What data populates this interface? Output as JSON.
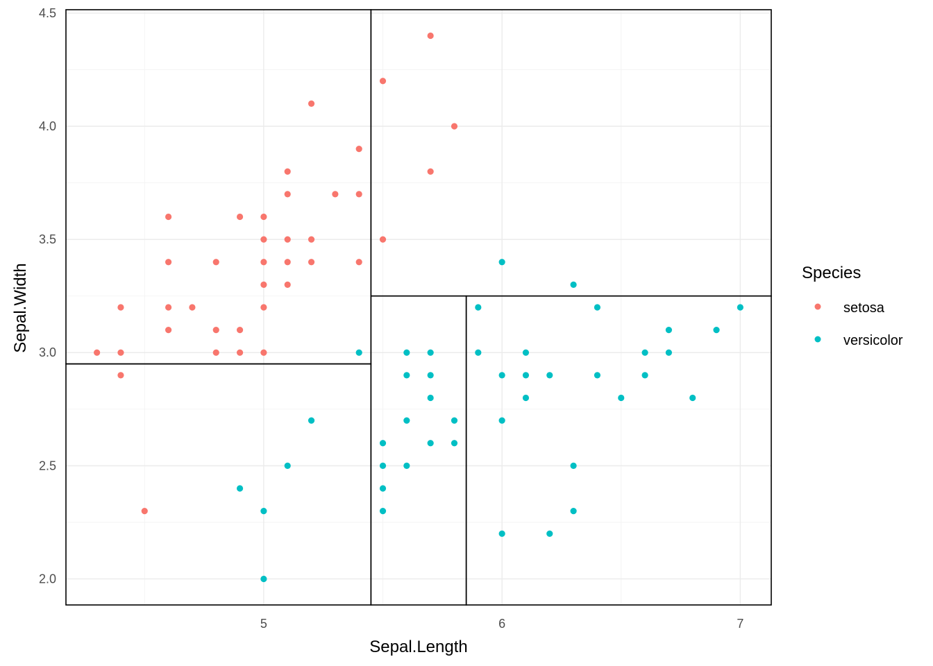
{
  "chart_data": {
    "type": "scatter",
    "title": "",
    "xlabel": "Sepal.Length",
    "ylabel": "Sepal.Width",
    "xlim": [
      4.17,
      7.13
    ],
    "ylim": [
      1.885,
      4.515
    ],
    "x_ticks": [
      5,
      6,
      7
    ],
    "y_ticks": [
      2.0,
      2.5,
      3.0,
      3.5,
      4.0,
      4.5
    ],
    "y_tick_labels": [
      "2.0",
      "2.5",
      "3.0",
      "3.5",
      "4.0",
      "4.5"
    ],
    "grid": true,
    "legend": {
      "title": "Species",
      "position": "right"
    },
    "series": [
      {
        "name": "setosa",
        "color": "#F8766D",
        "points": [
          [
            4.3,
            3.0
          ],
          [
            4.4,
            3.2
          ],
          [
            4.4,
            3.0
          ],
          [
            4.4,
            2.9
          ],
          [
            4.5,
            2.3
          ],
          [
            4.6,
            3.6
          ],
          [
            4.6,
            3.4
          ],
          [
            4.6,
            3.2
          ],
          [
            4.6,
            3.1
          ],
          [
            4.7,
            3.2
          ],
          [
            4.8,
            3.4
          ],
          [
            4.8,
            3.1
          ],
          [
            4.8,
            3.0
          ],
          [
            4.9,
            3.6
          ],
          [
            4.9,
            3.1
          ],
          [
            4.9,
            3.0
          ],
          [
            5.0,
            3.6
          ],
          [
            5.0,
            3.5
          ],
          [
            5.0,
            3.4
          ],
          [
            5.0,
            3.3
          ],
          [
            5.0,
            3.2
          ],
          [
            5.0,
            3.0
          ],
          [
            5.1,
            3.8
          ],
          [
            5.1,
            3.7
          ],
          [
            5.1,
            3.5
          ],
          [
            5.1,
            3.4
          ],
          [
            5.1,
            3.3
          ],
          [
            5.2,
            4.1
          ],
          [
            5.2,
            3.5
          ],
          [
            5.2,
            3.4
          ],
          [
            5.3,
            3.7
          ],
          [
            5.4,
            3.9
          ],
          [
            5.4,
            3.7
          ],
          [
            5.4,
            3.4
          ],
          [
            5.5,
            4.2
          ],
          [
            5.5,
            3.5
          ],
          [
            5.7,
            4.4
          ],
          [
            5.7,
            3.8
          ],
          [
            5.8,
            4.0
          ]
        ]
      },
      {
        "name": "versicolor",
        "color": "#00BFC4",
        "points": [
          [
            4.9,
            2.4
          ],
          [
            5.0,
            2.3
          ],
          [
            5.0,
            2.0
          ],
          [
            5.1,
            2.5
          ],
          [
            5.2,
            2.7
          ],
          [
            5.4,
            3.0
          ],
          [
            5.5,
            2.6
          ],
          [
            5.5,
            2.5
          ],
          [
            5.5,
            2.4
          ],
          [
            5.5,
            2.3
          ],
          [
            5.6,
            3.0
          ],
          [
            5.6,
            2.9
          ],
          [
            5.6,
            2.7
          ],
          [
            5.6,
            2.5
          ],
          [
            5.7,
            3.0
          ],
          [
            5.7,
            2.9
          ],
          [
            5.7,
            2.8
          ],
          [
            5.7,
            2.6
          ],
          [
            5.8,
            2.7
          ],
          [
            5.8,
            2.6
          ],
          [
            5.9,
            3.2
          ],
          [
            5.9,
            3.0
          ],
          [
            6.0,
            3.4
          ],
          [
            6.0,
            2.9
          ],
          [
            6.0,
            2.7
          ],
          [
            6.0,
            2.2
          ],
          [
            6.1,
            3.0
          ],
          [
            6.1,
            2.9
          ],
          [
            6.1,
            2.8
          ],
          [
            6.2,
            2.9
          ],
          [
            6.2,
            2.2
          ],
          [
            6.3,
            3.3
          ],
          [
            6.3,
            2.5
          ],
          [
            6.3,
            2.3
          ],
          [
            6.4,
            3.2
          ],
          [
            6.4,
            2.9
          ],
          [
            6.5,
            2.8
          ],
          [
            6.6,
            3.0
          ],
          [
            6.6,
            2.9
          ],
          [
            6.7,
            3.1
          ],
          [
            6.7,
            3.0
          ],
          [
            6.8,
            2.8
          ],
          [
            6.9,
            3.1
          ],
          [
            7.0,
            3.2
          ]
        ]
      }
    ],
    "partition_rectangles": [
      {
        "x": [
          4.17,
          5.45
        ],
        "y": [
          2.95,
          4.515
        ]
      },
      {
        "x": [
          4.17,
          5.45
        ],
        "y": [
          1.885,
          2.95
        ]
      },
      {
        "x": [
          5.45,
          7.13
        ],
        "y": [
          3.25,
          4.515
        ]
      },
      {
        "x": [
          5.45,
          5.85
        ],
        "y": [
          1.885,
          3.25
        ]
      },
      {
        "x": [
          5.85,
          7.13
        ],
        "y": [
          1.885,
          3.25
        ]
      }
    ]
  }
}
